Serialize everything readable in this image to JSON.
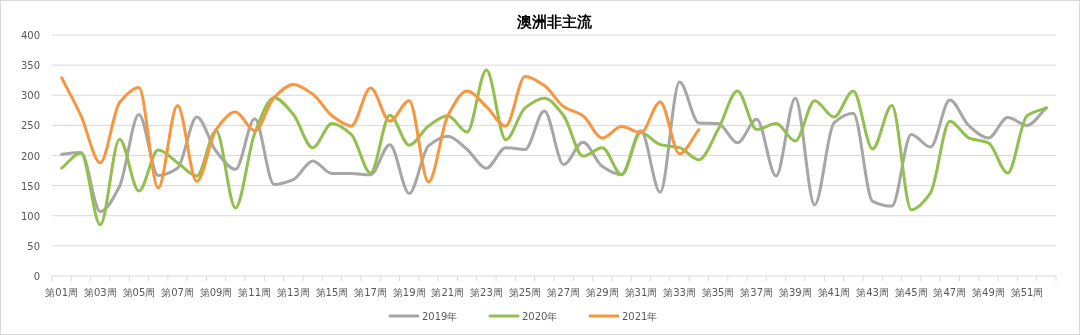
{
  "chart_data": {
    "type": "line",
    "title": "澳洲非主流",
    "categories": [
      "第01周",
      null,
      "第03周",
      null,
      "第05周",
      null,
      "第07周",
      null,
      "第09周",
      null,
      "第11周",
      null,
      "第13周",
      null,
      "第15周",
      null,
      "第17周",
      null,
      "第19周",
      null,
      "第21周",
      null,
      "第23周",
      null,
      "第25周",
      null,
      "第27周",
      null,
      "第29周",
      null,
      "第31周",
      null,
      "第33周",
      null,
      "第35周",
      null,
      "第37周",
      null,
      "第39周",
      null,
      "第41周",
      null,
      "第43周",
      null,
      "第45周",
      null,
      "第47周",
      null,
      "第49周",
      null,
      "第51周",
      null
    ],
    "series": [
      {
        "name": "2019年",
        "color": "#a6a6a6",
        "values": [
          202,
          205,
          107,
          149,
          268,
          167,
          179,
          264,
          207,
          177,
          261,
          152,
          160,
          191,
          170,
          170,
          168,
          218,
          137,
          216,
          232,
          210,
          179,
          213,
          210,
          274,
          185,
          222,
          182,
          168,
          241,
          139,
          322,
          254,
          253,
          221,
          260,
          166,
          295,
          118,
          254,
          270,
          124,
          116,
          235,
          214,
          292,
          249,
          229,
          263,
          250,
          279
        ]
      },
      {
        "name": "2020年",
        "color": "#92bf4e",
        "values": [
          179,
          204,
          85,
          227,
          141,
          209,
          188,
          166,
          241,
          113,
          237,
          296,
          268,
          213,
          253,
          235,
          171,
          267,
          217,
          249,
          266,
          239,
          342,
          226,
          279,
          295,
          266,
          199,
          213,
          168,
          238,
          218,
          213,
          193,
          243,
          307,
          243,
          253,
          224,
          291,
          264,
          307,
          211,
          283,
          110,
          138,
          257,
          229,
          221,
          171,
          266,
          279
        ]
      },
      {
        "name": "2021年",
        "color": "#f8963f",
        "values": [
          329,
          266,
          188,
          288,
          313,
          146,
          283,
          157,
          243,
          272,
          241,
          296,
          318,
          302,
          266,
          249,
          312,
          257,
          291,
          156,
          266,
          307,
          281,
          249,
          331,
          316,
          281,
          266,
          229,
          248,
          238,
          289,
          203,
          243,
          null,
          null,
          null,
          null,
          null,
          null,
          null,
          null,
          null,
          null,
          null,
          null,
          null,
          null,
          null,
          null,
          null,
          null
        ]
      }
    ],
    "ylim": [
      0,
      400
    ],
    "yticks": [
      0,
      50,
      100,
      150,
      200,
      250,
      300,
      350,
      400
    ],
    "grid": "y",
    "legend": "bottom",
    "marker": "none",
    "line_style": "solid"
  }
}
